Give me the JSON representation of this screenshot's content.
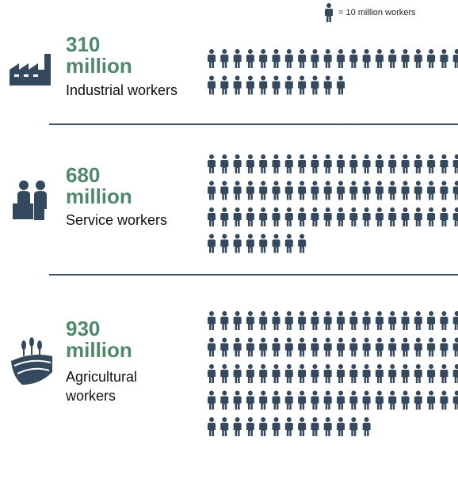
{
  "chart_data": {
    "type": "pictogram",
    "legend_label": "= 10 million workers",
    "icon_value": 10,
    "icon_color": "#34485e",
    "number_color": "#4e8a68",
    "groups": [
      {
        "value": 310,
        "unit_label": "million",
        "label": "Industrial workers"
      },
      {
        "value": 680,
        "unit_label": "million",
        "label": "Service workers"
      },
      {
        "value": 930,
        "unit_label": "million",
        "label": "Agricultural workers"
      }
    ]
  }
}
